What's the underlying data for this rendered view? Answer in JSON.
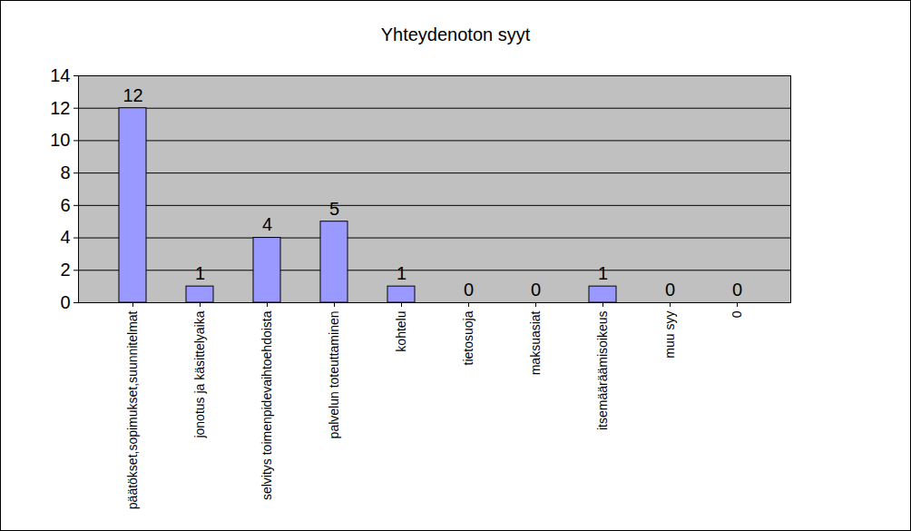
{
  "chart_data": {
    "type": "bar",
    "title": "Yhteydenoton syyt",
    "categories": [
      "päätökset,sopimukset,suunnitelmat",
      "jonotus ja käsittelyaika",
      "selvitys toimenpidevaihtoehdoista",
      "palvelun toteuttaminen",
      "kohtelu",
      "tietosuoja",
      "maksuasiat",
      "itsemääräämisoikeus",
      "muu syy",
      "0"
    ],
    "values": [
      12,
      1,
      4,
      5,
      1,
      0,
      0,
      1,
      0,
      0
    ],
    "color": "#9999ff",
    "ylim": [
      0,
      14
    ],
    "yticks": [
      0,
      2,
      4,
      6,
      8,
      10,
      12,
      14
    ],
    "grid": true,
    "data_labels": true
  }
}
